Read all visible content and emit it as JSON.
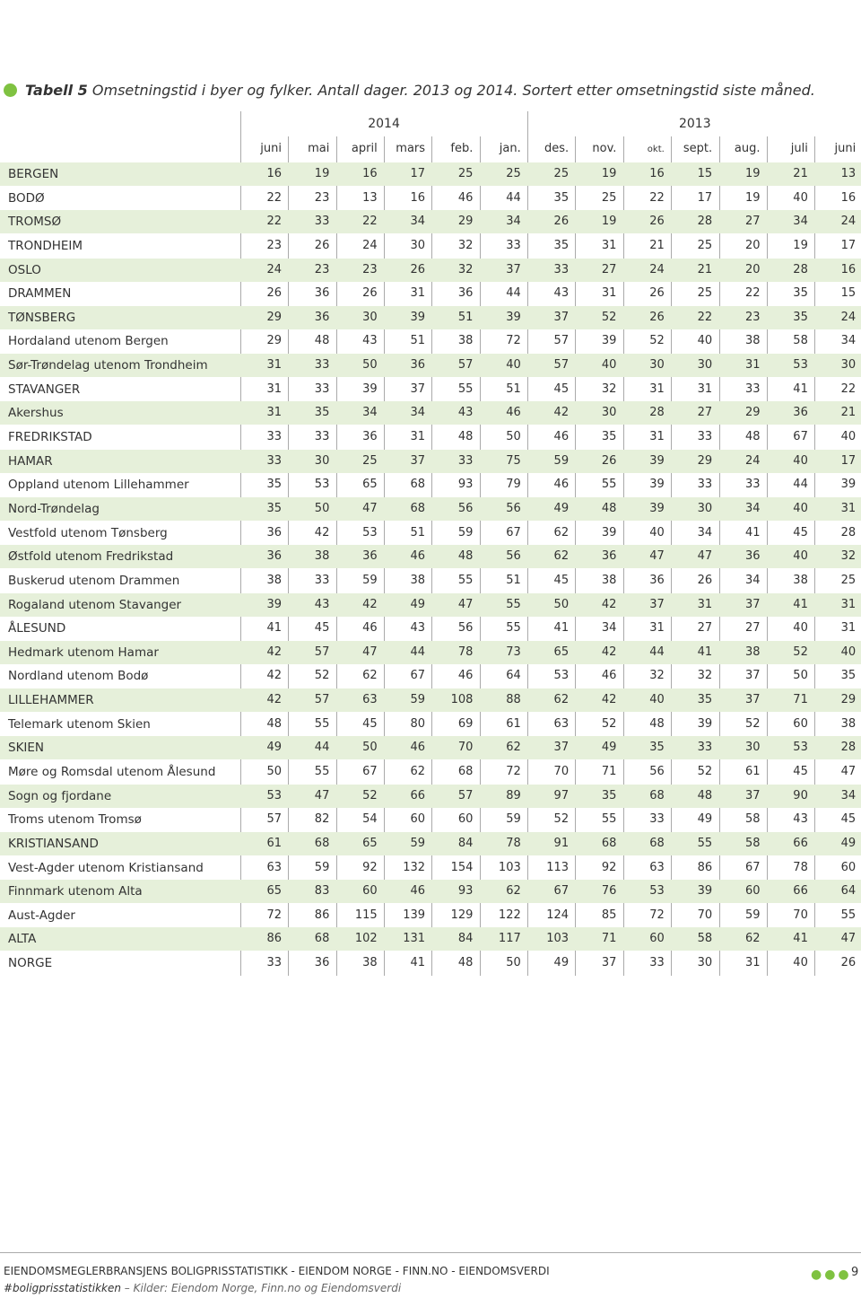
{
  "title": {
    "label": "Tabell 5",
    "text": "Omsetningstid i byer og fylker. Antall dager. 2013 og 2014. Sortert etter omsetningstid siste måned."
  },
  "table": {
    "years": [
      "2014",
      "2013"
    ],
    "columns": [
      "juni",
      "mai",
      "april",
      "mars",
      "feb.",
      "jan.",
      "des.",
      "nov.",
      "okt.",
      "sept.",
      "aug.",
      "juli",
      "juni"
    ],
    "rows": [
      {
        "label": "BERGEN",
        "values": [
          16,
          19,
          16,
          17,
          25,
          25,
          25,
          19,
          16,
          15,
          19,
          21,
          13
        ]
      },
      {
        "label": "BODØ",
        "values": [
          22,
          23,
          13,
          16,
          46,
          44,
          35,
          25,
          22,
          17,
          19,
          40,
          16
        ]
      },
      {
        "label": "TROMSØ",
        "values": [
          22,
          33,
          22,
          34,
          29,
          34,
          26,
          19,
          26,
          28,
          27,
          34,
          24
        ]
      },
      {
        "label": "TRONDHEIM",
        "values": [
          23,
          26,
          24,
          30,
          32,
          33,
          35,
          31,
          21,
          25,
          20,
          19,
          17
        ]
      },
      {
        "label": "OSLO",
        "values": [
          24,
          23,
          23,
          26,
          32,
          37,
          33,
          27,
          24,
          21,
          20,
          28,
          16
        ]
      },
      {
        "label": "DRAMMEN",
        "values": [
          26,
          36,
          26,
          31,
          36,
          44,
          43,
          31,
          26,
          25,
          22,
          35,
          15
        ]
      },
      {
        "label": "TØNSBERG",
        "values": [
          29,
          36,
          30,
          39,
          51,
          39,
          37,
          52,
          26,
          22,
          23,
          35,
          24
        ]
      },
      {
        "label": "Hordaland utenom Bergen",
        "values": [
          29,
          48,
          43,
          51,
          38,
          72,
          57,
          39,
          52,
          40,
          38,
          58,
          34
        ]
      },
      {
        "label": "Sør-Trøndelag utenom Trondheim",
        "values": [
          31,
          33,
          50,
          36,
          57,
          40,
          57,
          40,
          30,
          30,
          31,
          53,
          30
        ]
      },
      {
        "label": "STAVANGER",
        "values": [
          31,
          33,
          39,
          37,
          55,
          51,
          45,
          32,
          31,
          31,
          33,
          41,
          22
        ]
      },
      {
        "label": "Akershus",
        "values": [
          31,
          35,
          34,
          34,
          43,
          46,
          42,
          30,
          28,
          27,
          29,
          36,
          21
        ]
      },
      {
        "label": "FREDRIKSTAD",
        "values": [
          33,
          33,
          36,
          31,
          48,
          50,
          46,
          35,
          31,
          33,
          48,
          67,
          40
        ]
      },
      {
        "label": "HAMAR",
        "values": [
          33,
          30,
          25,
          37,
          33,
          75,
          59,
          26,
          39,
          29,
          24,
          40,
          17
        ]
      },
      {
        "label": "Oppland utenom Lillehammer",
        "values": [
          35,
          53,
          65,
          68,
          93,
          79,
          46,
          55,
          39,
          33,
          33,
          44,
          39
        ]
      },
      {
        "label": "Nord-Trøndelag",
        "values": [
          35,
          50,
          47,
          68,
          56,
          56,
          49,
          48,
          39,
          30,
          34,
          40,
          31
        ]
      },
      {
        "label": "Vestfold utenom Tønsberg",
        "values": [
          36,
          42,
          53,
          51,
          59,
          67,
          62,
          39,
          40,
          34,
          41,
          45,
          28
        ]
      },
      {
        "label": "Østfold utenom Fredrikstad",
        "values": [
          36,
          38,
          36,
          46,
          48,
          56,
          62,
          36,
          47,
          47,
          36,
          40,
          32
        ]
      },
      {
        "label": "Buskerud utenom Drammen",
        "values": [
          38,
          33,
          59,
          38,
          55,
          51,
          45,
          38,
          36,
          26,
          34,
          38,
          25
        ]
      },
      {
        "label": "Rogaland utenom Stavanger",
        "values": [
          39,
          43,
          42,
          49,
          47,
          55,
          50,
          42,
          37,
          31,
          37,
          41,
          31
        ]
      },
      {
        "label": "ÅLESUND",
        "values": [
          41,
          45,
          46,
          43,
          56,
          55,
          41,
          34,
          31,
          27,
          27,
          40,
          31
        ]
      },
      {
        "label": "Hedmark utenom Hamar",
        "values": [
          42,
          57,
          47,
          44,
          78,
          73,
          65,
          42,
          44,
          41,
          38,
          52,
          40
        ]
      },
      {
        "label": "Nordland utenom Bodø",
        "values": [
          42,
          52,
          62,
          67,
          46,
          64,
          53,
          46,
          32,
          32,
          37,
          50,
          35
        ]
      },
      {
        "label": "LILLEHAMMER",
        "values": [
          42,
          57,
          63,
          59,
          108,
          88,
          62,
          42,
          40,
          35,
          37,
          71,
          29
        ]
      },
      {
        "label": "Telemark utenom Skien",
        "values": [
          48,
          55,
          45,
          80,
          69,
          61,
          63,
          52,
          48,
          39,
          52,
          60,
          38
        ]
      },
      {
        "label": "SKIEN",
        "values": [
          49,
          44,
          50,
          46,
          70,
          62,
          37,
          49,
          35,
          33,
          30,
          53,
          28
        ]
      },
      {
        "label": "Møre og Romsdal utenom Ålesund",
        "values": [
          50,
          55,
          67,
          62,
          68,
          72,
          70,
          71,
          56,
          52,
          61,
          45,
          47
        ]
      },
      {
        "label": "Sogn og fjordane",
        "values": [
          53,
          47,
          52,
          66,
          57,
          89,
          97,
          35,
          68,
          48,
          37,
          90,
          34
        ]
      },
      {
        "label": "Troms utenom Tromsø",
        "values": [
          57,
          82,
          54,
          60,
          60,
          59,
          52,
          55,
          33,
          49,
          58,
          43,
          45
        ]
      },
      {
        "label": "KRISTIANSAND",
        "values": [
          61,
          68,
          65,
          59,
          84,
          78,
          91,
          68,
          68,
          55,
          58,
          66,
          49
        ]
      },
      {
        "label": "Vest-Agder utenom Kristiansand",
        "values": [
          63,
          59,
          92,
          132,
          154,
          103,
          113,
          92,
          63,
          86,
          67,
          78,
          60
        ]
      },
      {
        "label": "Finnmark utenom Alta",
        "values": [
          65,
          83,
          60,
          46,
          93,
          62,
          67,
          76,
          53,
          39,
          60,
          66,
          64
        ]
      },
      {
        "label": "Aust-Agder",
        "values": [
          72,
          86,
          115,
          139,
          129,
          122,
          124,
          85,
          72,
          70,
          59,
          70,
          55
        ]
      },
      {
        "label": "ALTA",
        "values": [
          86,
          68,
          102,
          131,
          84,
          117,
          103,
          71,
          60,
          58,
          62,
          41,
          47
        ]
      },
      {
        "label": "NORGE",
        "values": [
          33,
          36,
          38,
          41,
          48,
          50,
          49,
          37,
          33,
          30,
          31,
          40,
          26
        ]
      }
    ]
  },
  "footer": {
    "line1": "EIENDOMSMEGLERBRANSJENS BOLIGPRISSTATISTIKK - EIENDOM NORGE - FINN.NO - EIENDOMSVERDI",
    "hashtag": "#boligprisstatistikken",
    "sources": "– Kilder: Eiendom Norge, Finn.no og Eiendomsverdi",
    "page": "9"
  }
}
